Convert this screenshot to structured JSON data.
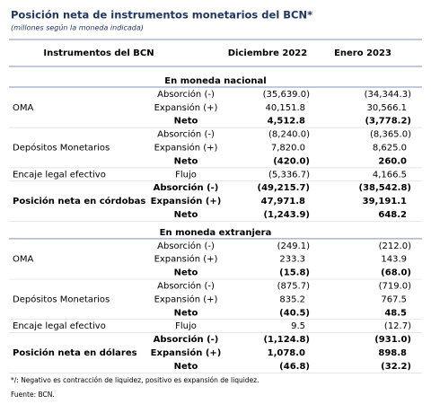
{
  "header": {
    "title": "Posición neta de instrumentos monetarios del BCN*",
    "subtitle": "(millones según la moneda indicada)"
  },
  "table": {
    "columns": [
      "Instrumentos del BCN",
      "Diciembre 2022",
      "Enero 2023"
    ],
    "sections": [
      {
        "title": "En moneda nacional",
        "groups": [
          {
            "label": "OMA",
            "emphasis": false,
            "rows": [
              {
                "concept": "Absorción (-)",
                "values": [
                  "(35,639.0)",
                  "(34,344.3)"
                ]
              },
              {
                "concept": "Expansión (+)",
                "values": [
                  "40,151.8",
                  "30,566.1"
                ]
              },
              {
                "concept": "Neto",
                "emphasis": true,
                "values": [
                  "4,512.8",
                  "(3,778.2)"
                ]
              }
            ]
          },
          {
            "label": "Depósitos Monetarios",
            "emphasis": false,
            "rows": [
              {
                "concept": "Absorción (-)",
                "values": [
                  "(8,240.0)",
                  "(8,365.0)"
                ]
              },
              {
                "concept": "Expansión (+)",
                "values": [
                  "7,820.0",
                  "8,625.0"
                ]
              },
              {
                "concept": "Neto",
                "emphasis": true,
                "values": [
                  "(420.0)",
                  "260.0"
                ]
              }
            ]
          },
          {
            "label": "Encaje legal efectivo",
            "emphasis": false,
            "rows": [
              {
                "concept": "Flujo",
                "values": [
                  "(5,336.7)",
                  "4,166.5"
                ]
              }
            ]
          },
          {
            "label": "Posición neta en córdobas",
            "emphasis": true,
            "rows": [
              {
                "concept": "Absorción (-)",
                "values": [
                  "(49,215.7)",
                  "(38,542.8)"
                ]
              },
              {
                "concept": "Expansión (+)",
                "values": [
                  "47,971.8",
                  "39,191.1"
                ]
              },
              {
                "concept": "Neto",
                "emphasis": true,
                "values": [
                  "(1,243.9)",
                  "648.2"
                ]
              }
            ]
          }
        ]
      },
      {
        "title": "En moneda extranjera",
        "groups": [
          {
            "label": "OMA",
            "emphasis": false,
            "rows": [
              {
                "concept": "Absorción (-)",
                "values": [
                  "(249.1)",
                  "(212.0)"
                ]
              },
              {
                "concept": "Expansión (+)",
                "values": [
                  "233.3",
                  "143.9"
                ]
              },
              {
                "concept": "Neto",
                "emphasis": true,
                "values": [
                  "(15.8)",
                  "(68.0)"
                ]
              }
            ]
          },
          {
            "label": "Depósitos Monetarios",
            "emphasis": false,
            "rows": [
              {
                "concept": "Absorción (-)",
                "values": [
                  "(875.7)",
                  "(719.0)"
                ]
              },
              {
                "concept": "Expansión (+)",
                "values": [
                  "835.2",
                  "767.5"
                ]
              },
              {
                "concept": "Neto",
                "emphasis": true,
                "values": [
                  "(40.5)",
                  "48.5"
                ]
              }
            ]
          },
          {
            "label": "Encaje legal efectivo",
            "emphasis": false,
            "rows": [
              {
                "concept": "Flujo",
                "values": [
                  "9.5",
                  "(12.7)"
                ]
              }
            ]
          },
          {
            "label": "Posición neta en dólares",
            "emphasis": true,
            "rows": [
              {
                "concept": "Absorción (-)",
                "values": [
                  "(1,124.8)",
                  "(931.0)"
                ]
              },
              {
                "concept": "Expansión (+)",
                "values": [
                  "1,078.0",
                  "898.8"
                ]
              },
              {
                "concept": "Neto",
                "emphasis": true,
                "values": [
                  "(46.8)",
                  "(32.2)"
                ]
              }
            ]
          }
        ]
      }
    ]
  },
  "footer": {
    "notes": [
      "*/: Negativo es contracción de liquidez, positivo es expansión de liquidez.",
      "Fuente: BCN."
    ]
  }
}
